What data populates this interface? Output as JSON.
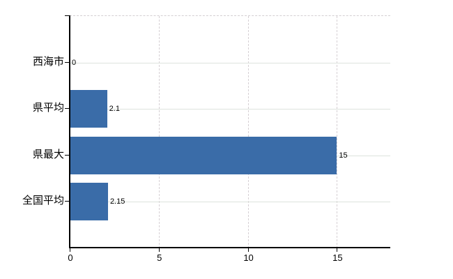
{
  "chart_data": {
    "type": "bar",
    "orientation": "horizontal",
    "title": "",
    "categories": [
      "西海市",
      "県平均",
      "県最大",
      "全国平均"
    ],
    "values": [
      0,
      2.1,
      15,
      2.15
    ],
    "value_labels": [
      "0",
      "2.1",
      "15",
      "2.15"
    ],
    "x_ticks": [
      0,
      5,
      10,
      15
    ],
    "x_tick_labels": [
      "0",
      "5",
      "10",
      "15"
    ],
    "xlim": [
      0,
      18
    ],
    "grid": true,
    "legend": false,
    "colors": {
      "bar": "#3a6ca8",
      "axis": "#000000",
      "grid_horizontal": "#dde3dd",
      "grid_vertical": "#d6d0d4",
      "background": "#ffffff"
    }
  }
}
